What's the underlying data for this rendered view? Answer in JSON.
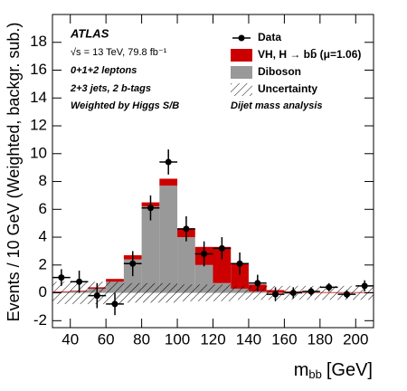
{
  "chart_data": {
    "type": "stacked_histogram",
    "texts": [
      "ATLAS",
      "√s = 13 TeV, 79.8 fb⁻¹",
      "0+1+2 leptons",
      "2+3 jets, 2 b-tags",
      "Weighted by Higgs S/B",
      "Dijet mass analysis"
    ],
    "y_label": "Events / 10 GeV (Weighted, backgr. sub.)",
    "x_label": {
      "symbol": "m",
      "subscript": "bb",
      "unit": "[GeV]"
    },
    "bins": [
      30,
      40,
      50,
      60,
      70,
      80,
      90,
      100,
      110,
      120,
      130,
      140,
      150,
      160,
      170,
      180,
      190,
      200,
      210
    ],
    "series": [
      {
        "name": "Diboson",
        "color": "#999999",
        "values": [
          0.05,
          0.1,
          0.3,
          0.8,
          2.4,
          6.2,
          7.7,
          4.0,
          2.0,
          0.7,
          0.3,
          0.1,
          0,
          0,
          0,
          0,
          0,
          0
        ]
      },
      {
        "name": "VH, H → bb̄ (μ=1.06)",
        "color": "#cc0000",
        "values": [
          0.05,
          0.05,
          0.1,
          0.2,
          0.3,
          0.3,
          0.5,
          0.6,
          1.3,
          2.6,
          1.8,
          0.5,
          0.2,
          0.1,
          0.05,
          0.05,
          0.05,
          0.05
        ]
      }
    ],
    "data": {
      "name": "Data",
      "color": "#000000",
      "x": [
        35,
        45,
        55,
        65,
        75,
        85,
        95,
        105,
        115,
        125,
        135,
        145,
        155,
        165,
        175,
        185,
        195,
        205
      ],
      "values": [
        1.1,
        0.8,
        -0.2,
        -0.8,
        2.1,
        6.1,
        9.4,
        4.6,
        2.8,
        3.2,
        2.1,
        0.7,
        -0.1,
        0.0,
        0.1,
        0.4,
        -0.1,
        0.5
      ],
      "errors": [
        0.6,
        0.8,
        0.9,
        0.8,
        0.9,
        0.9,
        0.9,
        0.9,
        0.9,
        0.8,
        0.8,
        0.6,
        0.5,
        0.4,
        0.3,
        0.3,
        0.3,
        0.4
      ]
    },
    "uncertainty": {
      "name": "Uncertainty",
      "values": [
        0.8,
        0.8,
        0.8,
        0.8,
        0.7,
        0.7,
        0.7,
        0.6,
        0.6,
        0.6,
        0.5,
        0.5,
        0.5,
        0.5,
        0.5,
        0.5,
        0.5,
        0.5
      ]
    },
    "xlim": [
      30,
      210
    ],
    "ylim": [
      -2.5,
      20
    ],
    "xticks": [
      40,
      60,
      80,
      100,
      120,
      140,
      160,
      180,
      200
    ],
    "yticks": [
      -2,
      0,
      2,
      4,
      6,
      8,
      10,
      12,
      14,
      16,
      18
    ]
  }
}
